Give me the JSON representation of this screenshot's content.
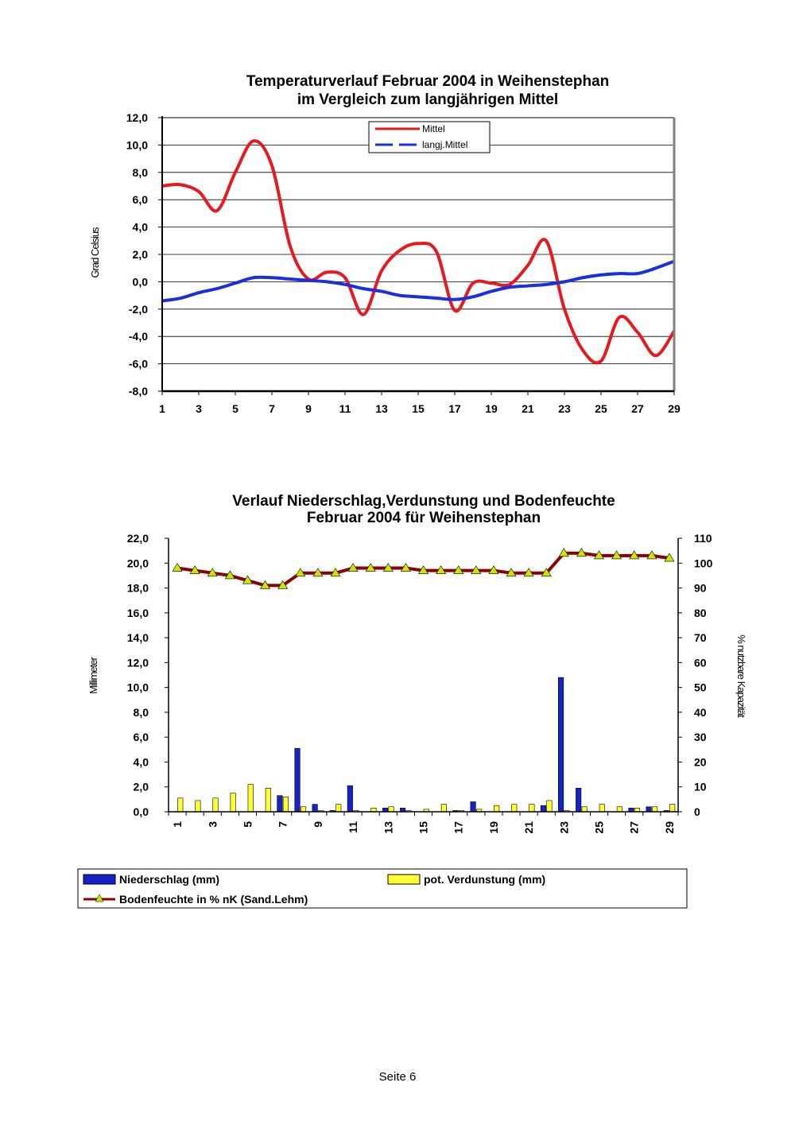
{
  "page": {
    "footer": "Seite 6"
  },
  "chart_data": [
    {
      "type": "line",
      "title": "Temperaturverlauf Februar 2004 in Weihenstephan",
      "subtitle": "im Vergleich zum langjährigen Mittel",
      "xlabel": "",
      "ylabel": "Grad Celsius",
      "x": [
        1,
        2,
        3,
        4,
        5,
        6,
        7,
        8,
        9,
        10,
        11,
        12,
        13,
        14,
        15,
        16,
        17,
        18,
        19,
        20,
        21,
        22,
        23,
        24,
        25,
        26,
        27,
        28,
        29
      ],
      "x_tick_labels": [
        "1",
        "3",
        "5",
        "7",
        "9",
        "11",
        "13",
        "15",
        "17",
        "19",
        "21",
        "23",
        "25",
        "27",
        "29"
      ],
      "y_tick_labels": [
        "12,0",
        "10,0",
        "8,0",
        "6,0",
        "4,0",
        "2,0",
        "0,0",
        "-2,0",
        "-4,0",
        "-6,0",
        "-8,0"
      ],
      "ylim": [
        -8,
        12
      ],
      "grid": true,
      "legend_position": "top-center",
      "series": [
        {
          "name": "Mittel",
          "color": "#e8191c",
          "values": [
            7.0,
            7.1,
            6.6,
            5.2,
            8.0,
            10.3,
            8.5,
            2.6,
            0.2,
            0.7,
            0.3,
            -2.4,
            0.8,
            2.3,
            2.8,
            2.2,
            -2.1,
            -0.1,
            -0.1,
            -0.2,
            1.2,
            3.0,
            -2.0,
            -5.0,
            -5.8,
            -2.6,
            -3.7,
            -5.4,
            -3.6
          ]
        },
        {
          "name": "langj.Mittel",
          "color": "#1a2fe0",
          "values": [
            -1.4,
            -1.2,
            -0.8,
            -0.5,
            -0.1,
            0.3,
            0.3,
            0.2,
            0.1,
            0.0,
            -0.2,
            -0.5,
            -0.7,
            -1.0,
            -1.1,
            -1.2,
            -1.3,
            -1.1,
            -0.7,
            -0.4,
            -0.3,
            -0.2,
            0.0,
            0.3,
            0.5,
            0.6,
            0.6,
            1.0,
            1.5
          ]
        }
      ]
    },
    {
      "type": "bar",
      "title": "Verlauf Niederschlag,Verdunstung und Bodenfeuchte",
      "subtitle": "Februar 2004 für Weihenstephan",
      "xlabel": "",
      "ylabel": "Millimeter",
      "y2label": "% nutzbare Kapazität",
      "categories": [
        "1",
        "2",
        "3",
        "4",
        "5",
        "6",
        "7",
        "8",
        "9",
        "10",
        "11",
        "12",
        "13",
        "14",
        "15",
        "16",
        "17",
        "18",
        "19",
        "20",
        "21",
        "22",
        "23",
        "24",
        "25",
        "26",
        "27",
        "28",
        "29"
      ],
      "x_tick_labels": [
        "1",
        "3",
        "5",
        "7",
        "9",
        "11",
        "13",
        "15",
        "17",
        "19",
        "21",
        "23",
        "25",
        "27",
        "29"
      ],
      "y_tick_labels": [
        "22,0",
        "20,0",
        "18,0",
        "16,0",
        "14,0",
        "12,0",
        "10,0",
        "8,0",
        "6,0",
        "4,0",
        "2,0",
        "0,0"
      ],
      "y2_tick_labels": [
        "110",
        "100",
        "90",
        "80",
        "70",
        "60",
        "50",
        "40",
        "30",
        "20",
        "10",
        "0"
      ],
      "ylim": [
        0,
        22
      ],
      "y2lim": [
        0,
        110
      ],
      "grid": false,
      "legend_position": "bottom",
      "series": [
        {
          "name": "Niederschlag (mm)",
          "kind": "bar",
          "color": "#1422c8",
          "values": [
            0,
            0,
            0,
            0,
            0,
            0,
            1.3,
            5.1,
            0.6,
            0.1,
            2.1,
            0,
            0.3,
            0.3,
            0,
            0,
            0.1,
            0.8,
            0,
            0,
            0,
            0.5,
            10.8,
            1.9,
            0,
            0,
            0.3,
            0.4,
            0.1
          ]
        },
        {
          "name": "pot. Verdunstung (mm)",
          "kind": "bar",
          "color": "#ffff33",
          "values": [
            1.1,
            0.9,
            1.1,
            1.5,
            2.2,
            1.9,
            1.2,
            0.4,
            0.1,
            0.6,
            0.1,
            0.3,
            0.4,
            0.1,
            0.2,
            0.6,
            0.1,
            0.2,
            0.5,
            0.6,
            0.6,
            0.9,
            0.1,
            0.4,
            0.6,
            0.4,
            0.3,
            0.4,
            0.6
          ]
        },
        {
          "name": "Bodenfeuchte in % nK (Sand.Lehm)",
          "kind": "line",
          "axis": "y2",
          "color": "#8b0000",
          "marker_color": "#c8e600",
          "values": [
            98,
            97,
            96,
            95,
            93,
            91,
            91,
            96,
            96,
            96,
            98,
            98,
            98,
            98,
            97,
            97,
            97,
            97,
            97,
            96,
            96,
            96,
            104,
            104,
            103,
            103,
            103,
            103,
            102
          ]
        }
      ]
    }
  ]
}
